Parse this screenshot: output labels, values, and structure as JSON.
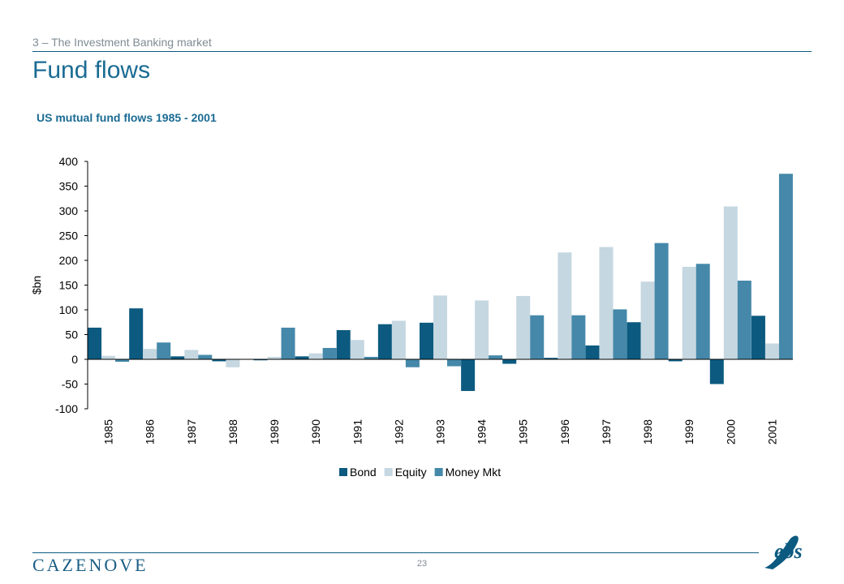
{
  "header": {
    "section_label": "3 – The Investment Banking market",
    "page_title": "Fund flows",
    "chart_title": "US mutual fund flows 1985 - 2001"
  },
  "footer": {
    "brand": "CAZENOVE",
    "page_number": "23",
    "ebs_logo_text": "ebs"
  },
  "colors": {
    "accent": "#1a6b93",
    "bond": "#0c5a80",
    "equity": "#c5d7e1",
    "money_mkt": "#4588a9",
    "axis": "#000000"
  },
  "chart_data": {
    "type": "bar",
    "title": "US mutual fund flows 1985 - 2001",
    "xlabel": "",
    "ylabel": "$bn",
    "ylim": [
      -100,
      400
    ],
    "yticks": [
      -100,
      -50,
      0,
      50,
      100,
      150,
      200,
      250,
      300,
      350,
      400
    ],
    "categories": [
      "1985",
      "1986",
      "1987",
      "1988",
      "1989",
      "1990",
      "1991",
      "1992",
      "1993",
      "1994",
      "1995",
      "1996",
      "1997",
      "1998",
      "1999",
      "2000",
      "2001"
    ],
    "series": [
      {
        "name": "Bond",
        "color": "#0c5a80",
        "values": [
          64,
          103,
          6,
          -4,
          -2,
          6,
          59,
          71,
          74,
          -64,
          -9,
          3,
          28,
          75,
          -4,
          -50,
          88
        ]
      },
      {
        "name": "Equity",
        "color": "#c5d7e1",
        "values": [
          7,
          21,
          19,
          -16,
          5,
          12,
          39,
          78,
          129,
          119,
          128,
          216,
          227,
          157,
          187,
          309,
          32
        ]
      },
      {
        "name": "Money Mkt",
        "color": "#4588a9",
        "values": [
          -5,
          34,
          9,
          0,
          64,
          23,
          5,
          -16,
          -14,
          8,
          89,
          89,
          101,
          235,
          193,
          159,
          375
        ]
      }
    ],
    "legend_position": "bottom",
    "grid": false
  }
}
